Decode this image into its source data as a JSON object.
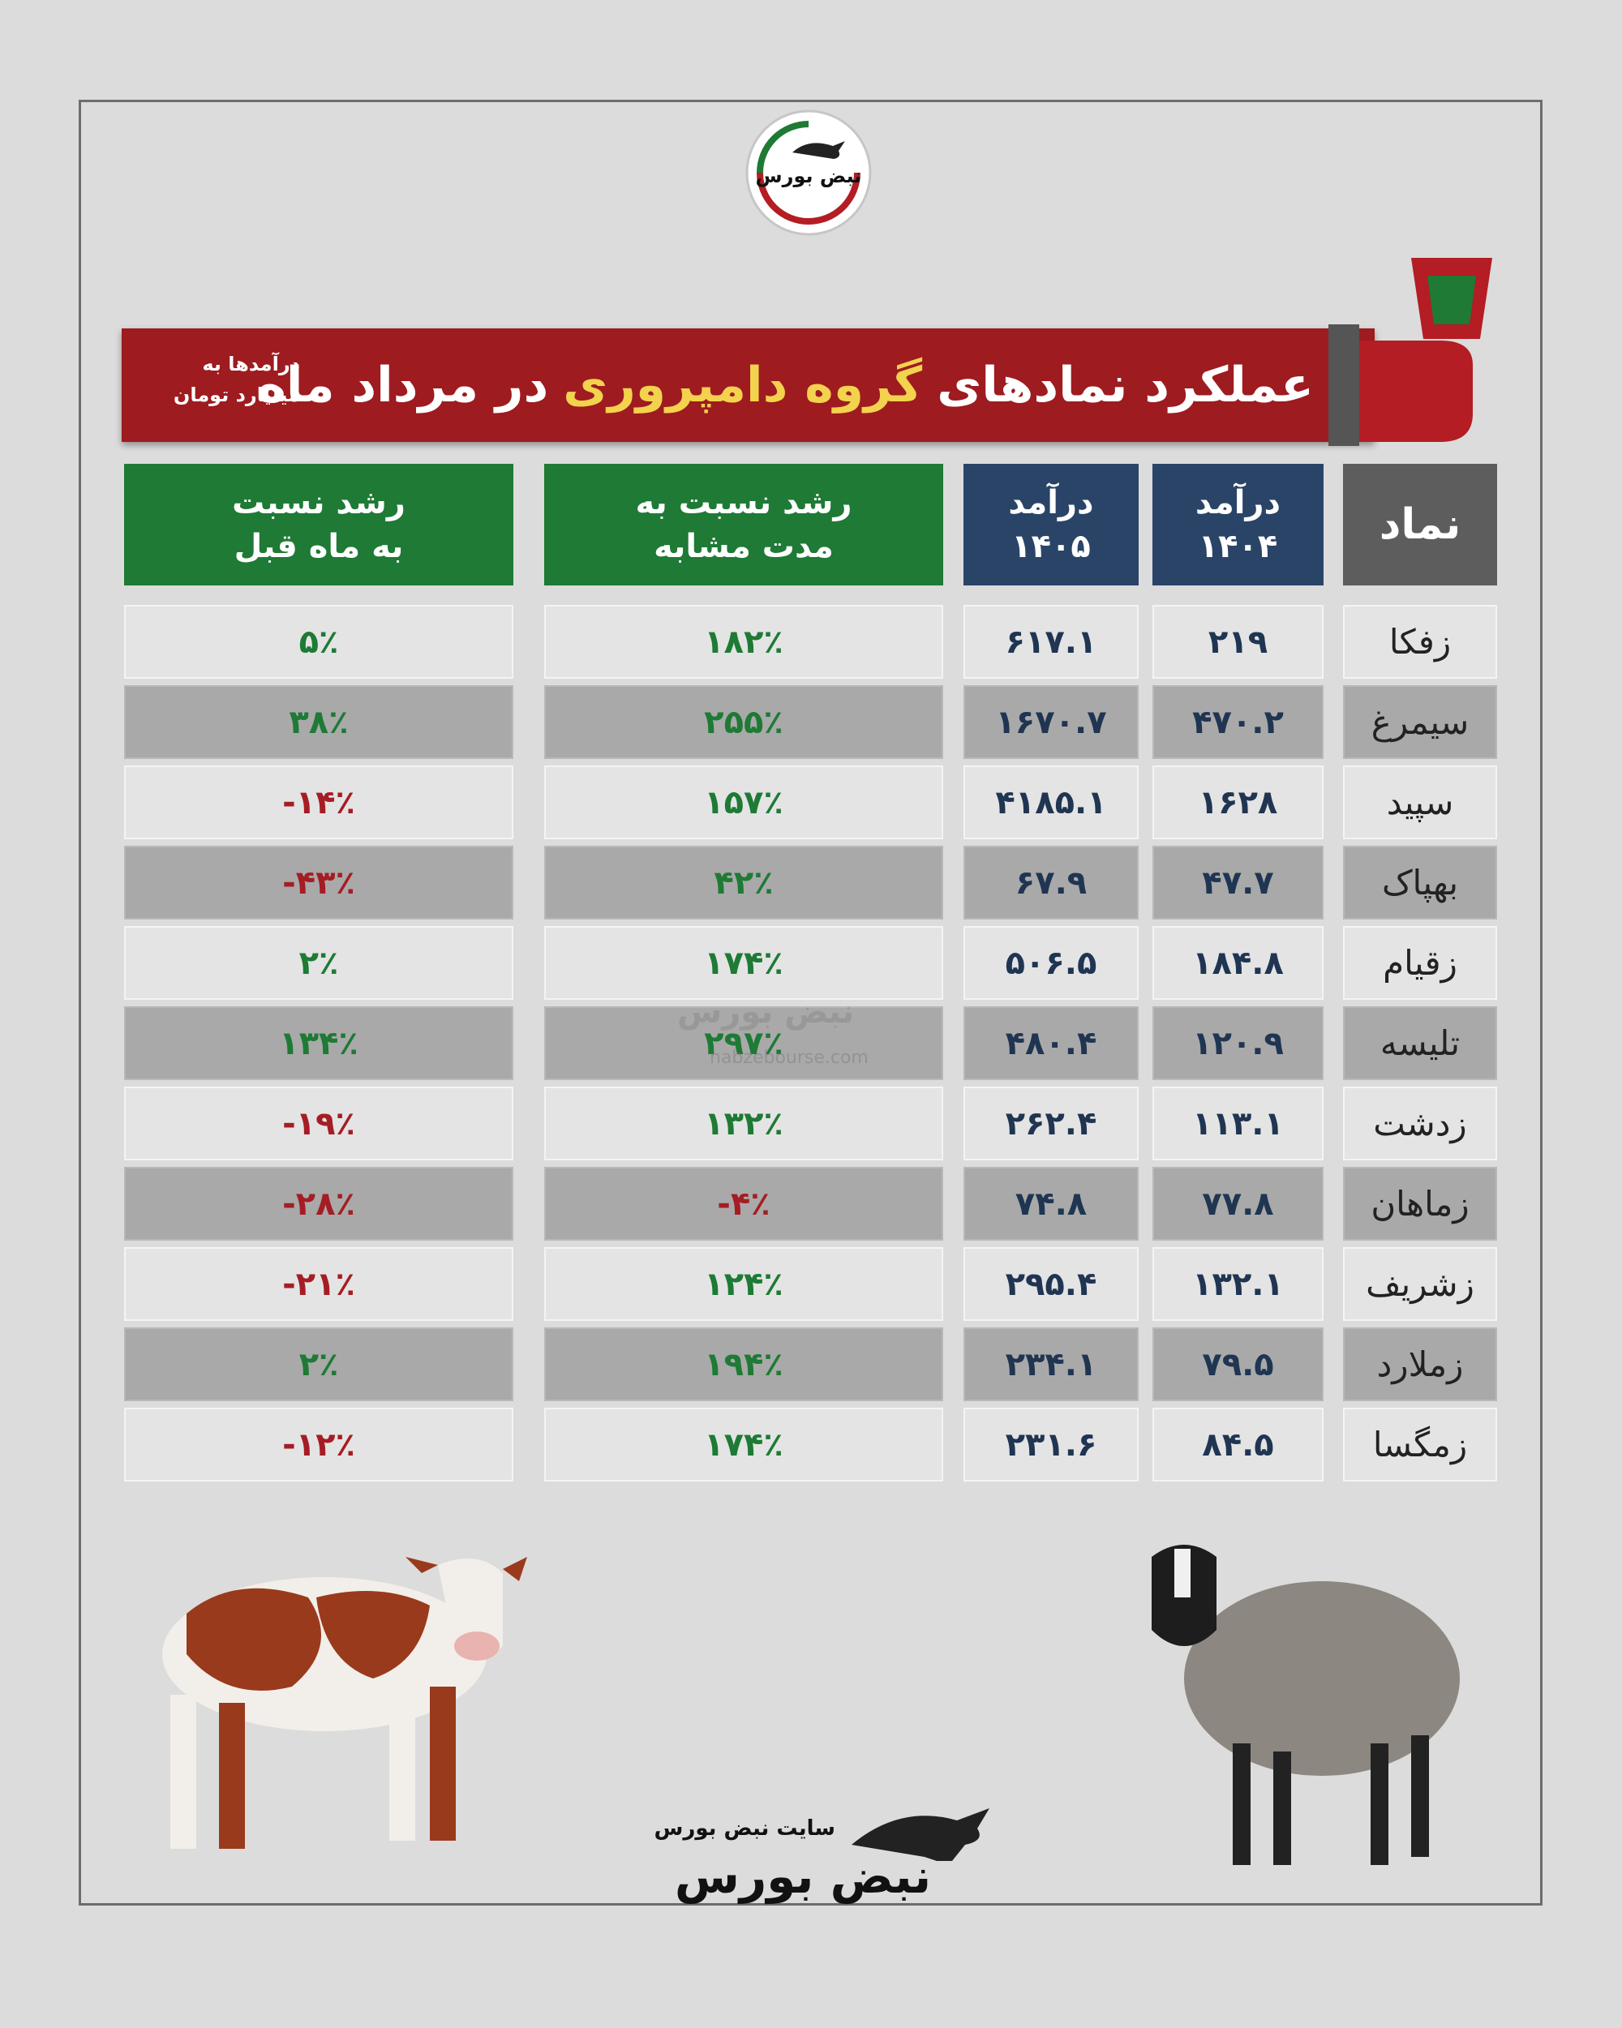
{
  "logo": {
    "text": "نبض بورس"
  },
  "title": {
    "before": "عملکرد نمادهای",
    "highlight": "گروه دامپروری",
    "after": "در مرداد ماه"
  },
  "note": [
    "درآمدها به",
    "میلیارد تومان"
  ],
  "table": {
    "headers": [
      [
        "نماد"
      ],
      [
        "درآمد",
        "۱۴۰۴"
      ],
      [
        "درآمد",
        "۱۴۰۵"
      ],
      [
        "رشد نسبت به",
        "مدت مشابه"
      ],
      [
        "رشد نسبت",
        "به ماه قبل"
      ]
    ],
    "rows": [
      [
        "زفکا",
        "۲۱۹",
        "۶۱۷.۱",
        "۱۸۲٪",
        "۵٪"
      ],
      [
        "سیمرغ",
        "۴۷۰.۲",
        "۱۶۷۰.۷",
        "۲۵۵٪",
        "۳۸٪"
      ],
      [
        "سپید",
        "۱۶۲۸",
        "۴۱۸۵.۱",
        "۱۵۷٪",
        "-۱۴٪"
      ],
      [
        "بهپاک",
        "۴۷.۷",
        "۶۷.۹",
        "۴۲٪",
        "-۴۳٪"
      ],
      [
        "زقیام",
        "۱۸۴.۸",
        "۵۰۶.۵",
        "۱۷۴٪",
        "۲٪"
      ],
      [
        "تلیسه",
        "۱۲۰.۹",
        "۴۸۰.۴",
        "۲۹۷٪",
        "۱۳۴٪"
      ],
      [
        "زدشت",
        "۱۱۳.۱",
        "۲۶۲.۴",
        "۱۳۲٪",
        "-۱۹٪"
      ],
      [
        "زماهان",
        "۷۷.۸",
        "۷۴.۸",
        "-۴٪",
        "-۲۸٪"
      ],
      [
        "زشریف",
        "۱۳۲.۱",
        "۲۹۵.۴",
        "۱۲۴٪",
        "-۲۱٪"
      ],
      [
        "زملارد",
        "۷۹.۵",
        "۲۳۴.۱",
        "۱۹۴٪",
        "۲٪"
      ],
      [
        "زمگسا",
        "۸۴.۵",
        "۲۳۱.۶",
        "۱۷۴٪",
        "-۱۲٪"
      ]
    ]
  },
  "watermark": {
    "text": "نبض بورس",
    "url": "nabzebourse.com"
  },
  "footer": {
    "caption": "سایت نبض بورس",
    "logo": "نبض بورس"
  }
}
